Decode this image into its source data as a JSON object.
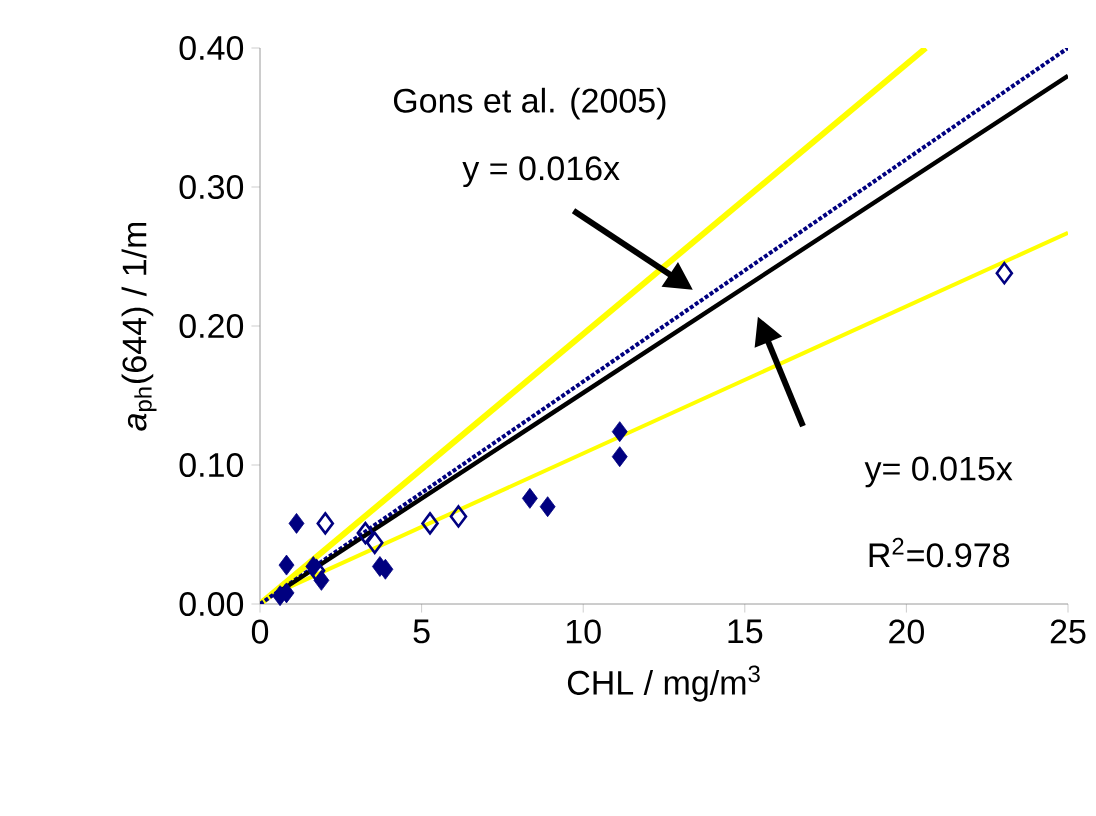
{
  "chart_data": {
    "type": "scatter",
    "xlabel": "CHL  / mg/m$^{3}$",
    "ylabel": "*a*$_{ph}$(644)  / 1/m",
    "xlim": [
      0,
      25
    ],
    "ylim": [
      0,
      0.4
    ],
    "xticks": [
      0,
      5,
      10,
      15,
      20,
      25
    ],
    "yticks": [
      {
        "value": 0,
        "label": "0.00"
      },
      {
        "value": 0.1,
        "label": "0.10"
      },
      {
        "value": 0.2,
        "label": "0.20"
      },
      {
        "value": 0.3,
        "label": "0.30"
      },
      {
        "value": 0.4,
        "label": "0.40"
      }
    ],
    "grid": false,
    "series": [
      {
        "type": "line",
        "color": "#ffff00",
        "marker": "none",
        "line_style": "solid",
        "x": [
          0,
          20.6
        ],
        "values": [
          0,
          0.4
        ]
      },
      {
        "type": "line",
        "color": "#ffff00",
        "marker": "none",
        "line_style": "solid",
        "x": [
          0.7,
          25
        ],
        "values": [
          0.01,
          0.267
        ]
      },
      {
        "type": "line",
        "color": "#000080",
        "marker": "none",
        "line_style": "dotted",
        "x": [
          0,
          25
        ],
        "values": [
          0,
          0.4
        ]
      },
      {
        "type": "line",
        "color": "#000000",
        "marker": "none",
        "line_style": "solid",
        "x": [
          0.6,
          25
        ],
        "values": [
          0.009,
          0.38
        ]
      },
      {
        "color": "#000080",
        "marker": "diamond",
        "x": [
          1.13,
          0.82,
          1.65,
          1.9,
          3.71,
          3.88,
          0.62,
          0.82,
          8.35,
          8.9,
          11.13,
          11.13
        ],
        "values": [
          0.058,
          0.028,
          0.027,
          0.017,
          0.027,
          0.025,
          0.006,
          0.008,
          0.076,
          0.07,
          0.124,
          0.106
        ]
      },
      {
        "color": "#000080",
        "marker": "diamond_open",
        "x": [
          2.02,
          3.26,
          3.55,
          5.26,
          6.14,
          23.03,
          1.75
        ],
        "values": [
          0.058,
          0.051,
          0.044,
          0.058,
          0.063,
          0.238,
          0.024
        ]
      }
    ],
    "annotations": [
      "Gons et al. (2005)",
      "y = 0.016x",
      "y= 0.015x",
      "R$^{2}$=0.978"
    ]
  }
}
